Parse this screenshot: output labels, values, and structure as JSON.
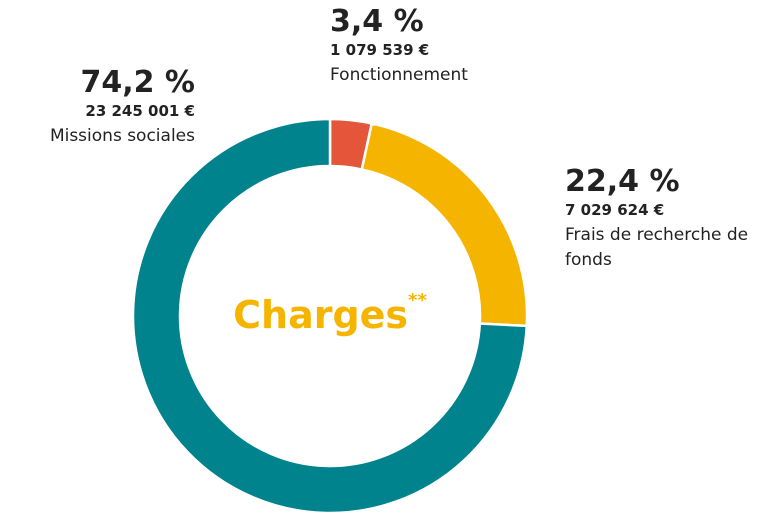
{
  "chart_data": {
    "type": "donut",
    "categories": [
      "Fonctionnement",
      "Frais de recherche de fonds",
      "Missions sociales"
    ],
    "values": [
      3.4,
      22.4,
      74.2
    ],
    "value_labels": [
      "3,4 %",
      "22,4 %",
      "74,2 %"
    ],
    "amounts": [
      1079539,
      7029624,
      23245001
    ],
    "amount_labels": [
      "1 079 539 €",
      "7 029 624 €",
      "23 245 001 €"
    ],
    "colors": [
      "#e4553a",
      "#f5b400",
      "#00838d"
    ],
    "center_label": "Charges",
    "center_note": "**"
  }
}
